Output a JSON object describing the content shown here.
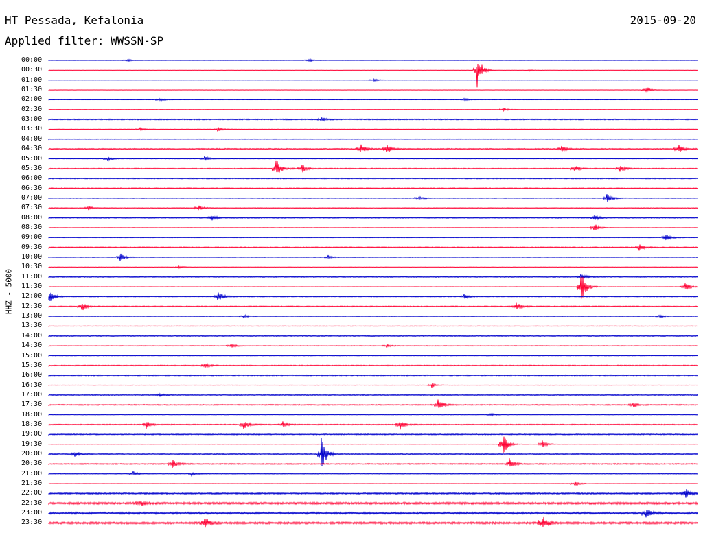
{
  "header": {
    "station": "HT Pessada, Kefalonia",
    "date": "2015-09-20",
    "filter": "Applied filter: WWSSN-SP"
  },
  "chart_data": {
    "type": "line",
    "title": "HT Pessada, Kefalonia",
    "ylabel": "HHZ - 5000",
    "x_minutes_per_line": 30,
    "colors": {
      "even": "#0000cc",
      "odd": "#ff0033"
    },
    "lines": [
      {
        "label": "00:00",
        "noise": 0.3,
        "events": [
          [
            12,
            0.8
          ],
          [
            40,
            1.0
          ]
        ]
      },
      {
        "label": "00:30",
        "noise": 0.3,
        "events": [
          [
            66,
            9.0
          ],
          [
            74,
            0.5
          ]
        ]
      },
      {
        "label": "01:00",
        "noise": 0.3,
        "events": [
          [
            50,
            0.8
          ]
        ]
      },
      {
        "label": "01:30",
        "noise": 0.3,
        "events": [
          [
            92,
            1.5
          ]
        ]
      },
      {
        "label": "02:00",
        "noise": 0.4,
        "events": [
          [
            17,
            1.0
          ],
          [
            64,
            0.8
          ]
        ]
      },
      {
        "label": "02:30",
        "noise": 0.4,
        "events": [
          [
            70,
            1.0
          ]
        ]
      },
      {
        "label": "03:00",
        "noise": 1.3,
        "events": [
          [
            42,
            1.2
          ]
        ]
      },
      {
        "label": "03:30",
        "noise": 0.6,
        "events": [
          [
            14,
            1.0
          ],
          [
            26,
            1.2
          ]
        ]
      },
      {
        "label": "04:00",
        "noise": 0.7,
        "events": []
      },
      {
        "label": "04:30",
        "noise": 1.2,
        "events": [
          [
            48,
            2.5
          ],
          [
            52,
            3.0
          ],
          [
            79,
            1.5
          ],
          [
            97,
            2.5
          ]
        ]
      },
      {
        "label": "05:00",
        "noise": 0.5,
        "events": [
          [
            9,
            1.2
          ],
          [
            24,
            1.5
          ]
        ]
      },
      {
        "label": "05:30",
        "noise": 1.2,
        "events": [
          [
            35,
            5.0
          ],
          [
            39,
            2.0
          ],
          [
            81,
            2.0
          ],
          [
            88,
            1.5
          ]
        ]
      },
      {
        "label": "06:00",
        "noise": 1.2,
        "events": []
      },
      {
        "label": "06:30",
        "noise": 1.2,
        "events": []
      },
      {
        "label": "07:00",
        "noise": 0.7,
        "events": [
          [
            57,
            1.0
          ],
          [
            86,
            2.5
          ]
        ]
      },
      {
        "label": "07:30",
        "noise": 0.8,
        "events": [
          [
            6,
            1.0
          ],
          [
            23,
            1.5
          ]
        ]
      },
      {
        "label": "08:00",
        "noise": 1.2,
        "events": [
          [
            25,
            2.0
          ],
          [
            84,
            1.5
          ]
        ]
      },
      {
        "label": "08:30",
        "noise": 0.4,
        "events": [
          [
            84,
            2.5
          ]
        ]
      },
      {
        "label": "09:00",
        "noise": 0.7,
        "events": [
          [
            95,
            2.0
          ]
        ]
      },
      {
        "label": "09:30",
        "noise": 1.3,
        "events": [
          [
            91,
            1.5
          ]
        ]
      },
      {
        "label": "10:00",
        "noise": 0.6,
        "events": [
          [
            11,
            2.0
          ],
          [
            43,
            1.0
          ]
        ]
      },
      {
        "label": "10:30",
        "noise": 0.4,
        "events": [
          [
            20,
            0.8
          ]
        ]
      },
      {
        "label": "11:00",
        "noise": 1.3,
        "events": [
          [
            82,
            2.0
          ]
        ]
      },
      {
        "label": "11:30",
        "noise": 0.4,
        "events": [
          [
            82,
            9.5
          ],
          [
            98,
            2.5
          ]
        ]
      },
      {
        "label": "12:00",
        "noise": 1.0,
        "events": [
          [
            0,
            4.0
          ],
          [
            26,
            3.0
          ],
          [
            64,
            1.2
          ]
        ]
      },
      {
        "label": "12:30",
        "noise": 1.3,
        "events": [
          [
            5,
            2.5
          ],
          [
            72,
            2.0
          ]
        ]
      },
      {
        "label": "13:00",
        "noise": 0.5,
        "events": [
          [
            30,
            1.0
          ],
          [
            94,
            1.0
          ]
        ]
      },
      {
        "label": "13:30",
        "noise": 0.6,
        "events": []
      },
      {
        "label": "14:00",
        "noise": 1.3,
        "events": []
      },
      {
        "label": "14:30",
        "noise": 0.8,
        "events": [
          [
            28,
            1.2
          ],
          [
            52,
            1.0
          ]
        ]
      },
      {
        "label": "15:00",
        "noise": 0.8,
        "events": []
      },
      {
        "label": "15:30",
        "noise": 1.2,
        "events": [
          [
            24,
            1.2
          ]
        ]
      },
      {
        "label": "16:00",
        "noise": 1.3,
        "events": []
      },
      {
        "label": "16:30",
        "noise": 0.4,
        "events": [
          [
            59,
            1.2
          ]
        ]
      },
      {
        "label": "17:00",
        "noise": 1.2,
        "events": [
          [
            17,
            1.0
          ]
        ]
      },
      {
        "label": "17:30",
        "noise": 1.2,
        "events": [
          [
            60,
            3.0
          ],
          [
            90,
            1.5
          ]
        ]
      },
      {
        "label": "18:00",
        "noise": 0.6,
        "events": [
          [
            68,
            0.8
          ]
        ]
      },
      {
        "label": "18:30",
        "noise": 1.2,
        "events": [
          [
            15,
            2.0
          ],
          [
            30,
            2.5
          ],
          [
            36,
            1.5
          ],
          [
            54,
            3.0
          ]
        ]
      },
      {
        "label": "19:00",
        "noise": 1.3,
        "events": []
      },
      {
        "label": "19:30",
        "noise": 0.4,
        "events": [
          [
            70,
            6.0
          ],
          [
            76,
            2.0
          ]
        ]
      },
      {
        "label": "20:00",
        "noise": 1.3,
        "events": [
          [
            4,
            1.5
          ],
          [
            42,
            9.0
          ]
        ]
      },
      {
        "label": "20:30",
        "noise": 1.3,
        "events": [
          [
            19,
            2.5
          ],
          [
            71,
            2.5
          ]
        ]
      },
      {
        "label": "21:00",
        "noise": 0.8,
        "events": [
          [
            13,
            1.2
          ],
          [
            22,
            1.0
          ]
        ]
      },
      {
        "label": "21:30",
        "noise": 0.5,
        "events": [
          [
            81,
            1.5
          ]
        ]
      },
      {
        "label": "22:00",
        "noise": 1.8,
        "events": [
          [
            98,
            3.0
          ]
        ]
      },
      {
        "label": "22:30",
        "noise": 2.5,
        "events": [
          [
            14,
            1.5
          ]
        ]
      },
      {
        "label": "23:00",
        "noise": 2.5,
        "events": [
          [
            92,
            2.0
          ]
        ]
      },
      {
        "label": "23:30",
        "noise": 2.5,
        "events": [
          [
            24,
            3.0
          ],
          [
            76,
            5.0
          ]
        ]
      }
    ]
  }
}
